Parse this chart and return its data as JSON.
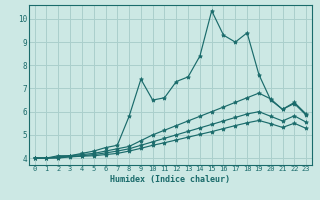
{
  "xlabel": "Humidex (Indice chaleur)",
  "bg_color": "#cce8e4",
  "grid_color": "#aacfcc",
  "line_color": "#1a6b6b",
  "spine_color": "#1a6b6b",
  "xlim": [
    -0.5,
    23.5
  ],
  "ylim": [
    3.7,
    10.6
  ],
  "xticks": [
    0,
    1,
    2,
    3,
    4,
    5,
    6,
    7,
    8,
    9,
    10,
    11,
    12,
    13,
    14,
    15,
    16,
    17,
    18,
    19,
    20,
    21,
    22,
    23
  ],
  "yticks": [
    4,
    5,
    6,
    7,
    8,
    9,
    10
  ],
  "series": [
    {
      "x": [
        0,
        1,
        2,
        3,
        4,
        5,
        6,
        7,
        8,
        9,
        10,
        11,
        12,
        13,
        14,
        15,
        16,
        17,
        18,
        19,
        20,
        21,
        22,
        23
      ],
      "y": [
        4.0,
        4.0,
        4.1,
        4.1,
        4.2,
        4.3,
        4.45,
        4.55,
        5.8,
        7.4,
        6.5,
        6.6,
        7.3,
        7.5,
        8.4,
        10.35,
        9.3,
        9.0,
        9.4,
        7.6,
        6.5,
        6.1,
        6.4,
        5.9
      ]
    },
    {
      "x": [
        0,
        1,
        2,
        3,
        4,
        5,
        6,
        7,
        8,
        9,
        10,
        11,
        12,
        13,
        14,
        15,
        16,
        17,
        18,
        19,
        20,
        21,
        22,
        23
      ],
      "y": [
        4.0,
        4.0,
        4.05,
        4.1,
        4.15,
        4.2,
        4.3,
        4.4,
        4.5,
        4.75,
        5.0,
        5.2,
        5.4,
        5.6,
        5.8,
        6.0,
        6.2,
        6.4,
        6.6,
        6.8,
        6.55,
        6.1,
        6.35,
        5.85
      ]
    },
    {
      "x": [
        0,
        1,
        2,
        3,
        4,
        5,
        6,
        7,
        8,
        9,
        10,
        11,
        12,
        13,
        14,
        15,
        16,
        17,
        18,
        19,
        20,
        21,
        22,
        23
      ],
      "y": [
        4.0,
        4.0,
        4.02,
        4.07,
        4.1,
        4.15,
        4.22,
        4.3,
        4.4,
        4.55,
        4.7,
        4.85,
        5.0,
        5.15,
        5.3,
        5.45,
        5.6,
        5.75,
        5.9,
        6.0,
        5.8,
        5.6,
        5.82,
        5.55
      ]
    },
    {
      "x": [
        0,
        1,
        2,
        3,
        4,
        5,
        6,
        7,
        8,
        9,
        10,
        11,
        12,
        13,
        14,
        15,
        16,
        17,
        18,
        19,
        20,
        21,
        22,
        23
      ],
      "y": [
        4.0,
        4.0,
        4.0,
        4.05,
        4.08,
        4.1,
        4.15,
        4.2,
        4.3,
        4.42,
        4.55,
        4.66,
        4.78,
        4.9,
        5.02,
        5.14,
        5.27,
        5.4,
        5.52,
        5.62,
        5.48,
        5.32,
        5.5,
        5.28
      ]
    }
  ]
}
